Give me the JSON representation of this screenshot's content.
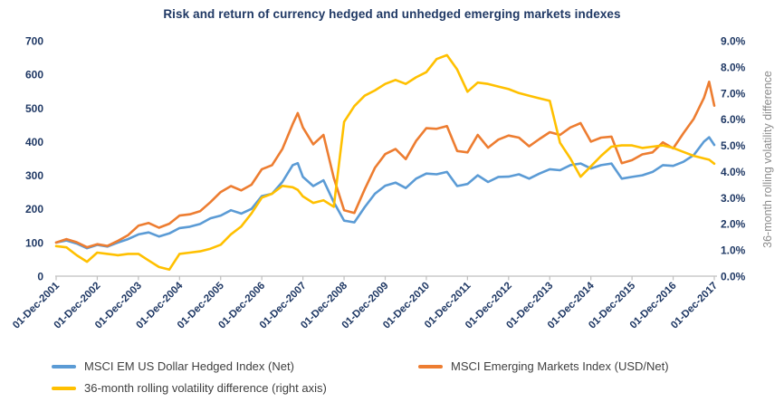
{
  "title": "Risk and return of currency hedged and unhedged emerging markets indexes",
  "colors": {
    "title_text": "#1F3864",
    "axis_text": "#1F3864",
    "axis_line": "#BFBFBF",
    "right_axis_title_text": "#8C8C8C",
    "legend_text": "#3F3F3F",
    "hedged_series": "#5B9BD5",
    "unhedged_series": "#ED7D31",
    "volatility_series": "#FFC000"
  },
  "legend": {
    "items": [
      {
        "label": "MSCI EM US Dollar Hedged Index (Net)",
        "color": "#5B9BD5"
      },
      {
        "label": "MSCI Emerging Markets Index (USD/Net)",
        "color": "#ED7D31"
      },
      {
        "label": "36-month rolling volatility difference (right axis)",
        "color": "#FFC000"
      }
    ]
  },
  "chart_data": {
    "type": "line",
    "title": "Risk and return of currency hedged and unhedged emerging markets indexes",
    "x_unit": "months since 01-Dec-2001",
    "x_tick_months": [
      0,
      12,
      24,
      36,
      48,
      60,
      72,
      84,
      96,
      108,
      120,
      132,
      144,
      156,
      168,
      180,
      192
    ],
    "x_tick_labels": [
      "01-Dec-2001",
      "01-Dec-2002",
      "01-Dec-2003",
      "01-Dec-2004",
      "01-Dec-2005",
      "01-Dec-2006",
      "01-Dec-2007",
      "01-Dec-2008",
      "01-Dec-2009",
      "01-Dec-2010",
      "01-Dec-2011",
      "01-Dec-2012",
      "01-Dec-2013",
      "01-Dec-2014",
      "01-Dec-2015",
      "01-Dec-2016",
      "01-Dec-2017"
    ],
    "left_axis": {
      "ticks": [
        0,
        100,
        200,
        300,
        400,
        500,
        600,
        700
      ],
      "range": [
        0,
        700
      ]
    },
    "right_axis": {
      "label": "36-month rolling volatility difference",
      "ticks": [
        "0.0%",
        "1.0%",
        "2.0%",
        "3.0%",
        "4.0%",
        "5.0%",
        "6.0%",
        "7.0%",
        "8.0%",
        "9.0%"
      ],
      "range": [
        0,
        9
      ]
    },
    "grid": false,
    "legend_position": "bottom",
    "x": [
      0,
      3,
      6,
      9,
      12,
      15,
      18,
      21,
      24,
      27,
      30,
      33,
      36,
      39,
      42,
      45,
      48,
      51,
      54,
      57,
      60,
      63,
      66,
      69,
      70.5,
      72,
      75,
      78,
      81,
      84,
      87,
      90,
      93,
      96,
      99,
      102,
      105,
      108,
      111,
      114,
      117,
      120,
      123,
      126,
      129,
      132,
      135,
      138,
      141,
      144,
      147,
      150,
      153,
      156,
      159,
      162,
      165,
      168,
      171,
      174,
      177,
      180,
      183,
      186,
      189,
      190.5,
      192
    ],
    "series": [
      {
        "name": "MSCI EM US Dollar Hedged Index (Net)",
        "axis": "left",
        "color": "#5B9BD5",
        "values": [
          100,
          106,
          97,
          83,
          93,
          88,
          100,
          110,
          124,
          130,
          118,
          127,
          143,
          147,
          155,
          172,
          180,
          196,
          186,
          200,
          238,
          245,
          280,
          330,
          336,
          295,
          268,
          285,
          220,
          165,
          160,
          205,
          245,
          269,
          278,
          262,
          290,
          305,
          303,
          310,
          268,
          274,
          300,
          280,
          295,
          296,
          303,
          290,
          305,
          318,
          315,
          330,
          335,
          320,
          330,
          335,
          290,
          295,
          300,
          310,
          330,
          328,
          340,
          360,
          400,
          413,
          390
        ]
      },
      {
        "name": "MSCI Emerging Markets Index (USD/Net)",
        "axis": "left",
        "color": "#ED7D31",
        "values": [
          100,
          110,
          101,
          86,
          95,
          90,
          105,
          122,
          150,
          158,
          144,
          156,
          180,
          184,
          193,
          220,
          250,
          268,
          255,
          272,
          318,
          330,
          378,
          452,
          485,
          442,
          392,
          420,
          292,
          196,
          188,
          258,
          322,
          363,
          378,
          348,
          402,
          440,
          438,
          446,
          372,
          368,
          420,
          382,
          406,
          418,
          412,
          386,
          408,
          428,
          420,
          442,
          455,
          400,
          412,
          415,
          336,
          345,
          362,
          368,
          398,
          380,
          425,
          468,
          530,
          578,
          507
        ]
      },
      {
        "name": "36-month rolling volatility difference (right axis)",
        "axis": "right",
        "color": "#FFC000",
        "values": [
          1.15,
          1.1,
          0.8,
          0.55,
          0.9,
          0.85,
          0.8,
          0.85,
          0.85,
          0.6,
          0.35,
          0.25,
          0.85,
          0.9,
          0.95,
          1.05,
          1.2,
          1.6,
          1.9,
          2.4,
          3.0,
          3.15,
          3.45,
          3.4,
          3.3,
          3.05,
          2.8,
          2.9,
          2.65,
          5.9,
          6.5,
          6.9,
          7.1,
          7.35,
          7.5,
          7.35,
          7.6,
          7.8,
          8.3,
          8.45,
          7.9,
          7.05,
          7.4,
          7.35,
          7.25,
          7.15,
          7.0,
          6.9,
          6.8,
          6.7,
          5.1,
          4.5,
          3.8,
          4.2,
          4.6,
          4.95,
          5.0,
          5.0,
          4.9,
          4.95,
          5.0,
          4.9,
          4.75,
          4.6,
          4.5,
          4.45,
          4.3
        ]
      }
    ]
  }
}
